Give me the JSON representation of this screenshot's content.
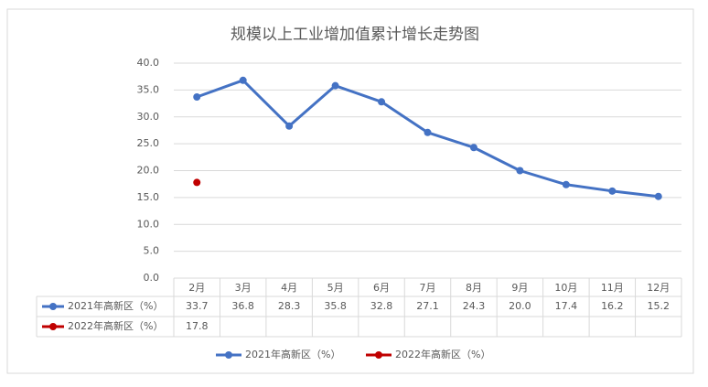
{
  "chart_data": {
    "type": "line",
    "title": "规模以上工业增加值累计增长走势图",
    "categories": [
      "2月",
      "3月",
      "4月",
      "5月",
      "6月",
      "7月",
      "8月",
      "9月",
      "10月",
      "11月",
      "12月"
    ],
    "series": [
      {
        "name": "2021年高新区（%）",
        "color": "#4472c4",
        "values": [
          33.7,
          36.8,
          28.3,
          35.8,
          32.8,
          27.1,
          24.3,
          20.0,
          17.4,
          16.2,
          15.2
        ],
        "value_labels": [
          "33.7",
          "36.8",
          "28.3",
          "35.8",
          "32.8",
          "27.1",
          "24.3",
          "20.0",
          "17.4",
          "16.2",
          "15.2"
        ]
      },
      {
        "name": "2022年高新区（%）",
        "color": "#c00000",
        "values": [
          17.8,
          null,
          null,
          null,
          null,
          null,
          null,
          null,
          null,
          null,
          null
        ],
        "value_labels": [
          "17.8",
          null,
          null,
          null,
          null,
          null,
          null,
          null,
          null,
          null,
          null
        ]
      }
    ],
    "ylim": [
      0,
      40
    ],
    "yticks": [
      {
        "value": 0,
        "label": "0.0"
      },
      {
        "value": 5,
        "label": "5.0"
      },
      {
        "value": 10,
        "label": "10.0"
      },
      {
        "value": 15,
        "label": "15.0"
      },
      {
        "value": 20,
        "label": "20.0"
      },
      {
        "value": 25,
        "label": "25.0"
      },
      {
        "value": 30,
        "label": "30.0"
      },
      {
        "value": 35,
        "label": "35.0"
      },
      {
        "value": 40,
        "label": "40.0"
      }
    ],
    "grid": true
  }
}
